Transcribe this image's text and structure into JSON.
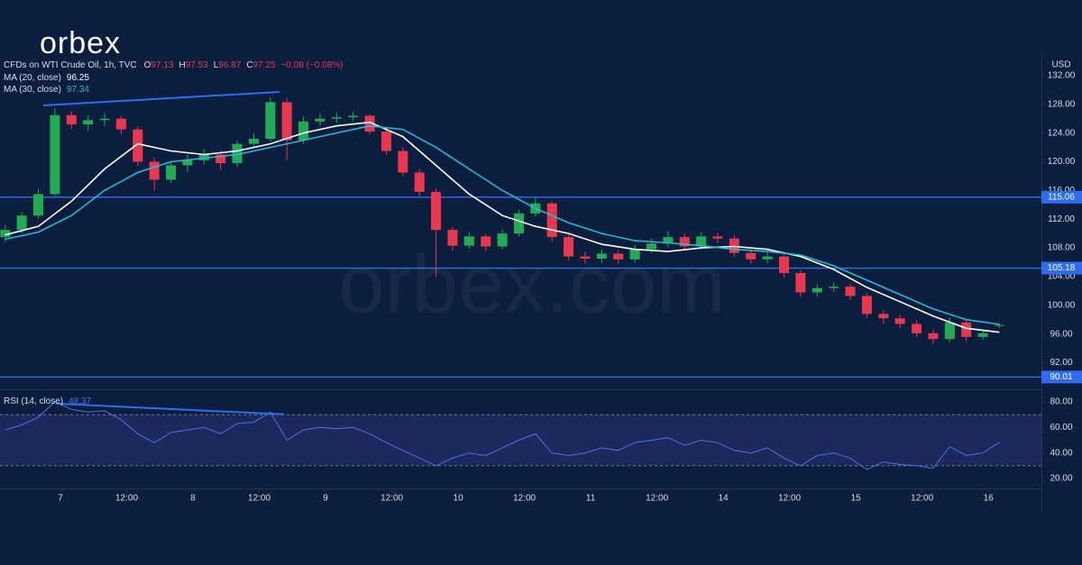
{
  "chart_data": {
    "type": "candlestick",
    "logo": "orbex",
    "watermark": "orbex.com",
    "title": "CFDs on WTI Crude Oil, 1h, TVC",
    "ohlc_keys": [
      "O",
      "H",
      "L",
      "C"
    ],
    "change_label": "−0.08 (−0.08%)",
    "currency": "USD",
    "up_color": "#22ab54",
    "down_color": "#e8384f",
    "x": [
      -10,
      -7,
      -4,
      -1,
      2,
      5,
      8,
      11,
      14,
      17,
      20,
      23,
      26,
      29,
      32,
      35,
      38,
      41,
      44,
      47,
      50,
      53,
      56,
      59,
      62,
      65,
      68,
      71,
      74,
      77,
      80,
      83,
      86,
      89,
      92,
      95,
      98,
      101,
      104,
      107,
      110,
      113,
      116,
      119,
      122,
      125,
      128,
      131,
      134,
      137,
      140,
      143,
      146,
      149,
      152,
      155,
      158,
      161,
      164,
      167,
      170
    ],
    "open": [
      109.5,
      110.5,
      112.5,
      115.5,
      126.5,
      125.2,
      125.8,
      126,
      124.5,
      120,
      117.5,
      119.5,
      120.2,
      121,
      119.8,
      122.5,
      123.2,
      128.3,
      123,
      125.6,
      126,
      126.2,
      126.4,
      124.2,
      121.5,
      118.5,
      115.8,
      110.5,
      108.3,
      109.6,
      108.2,
      110,
      112.8,
      114.2,
      109.5,
      106.8,
      106.5,
      107.2,
      106.4,
      107.8,
      108.6,
      109.5,
      108.2,
      109.6,
      109.3,
      107.3,
      106.4,
      106.8,
      104.5,
      101.8,
      102.4,
      102.6,
      101.3,
      98.8,
      98.2,
      97.4,
      96.1,
      95.3,
      97.6,
      95.6,
      97.13
    ],
    "high": [
      111.2,
      113,
      116.2,
      127.4,
      127,
      126.5,
      126.8,
      126.4,
      124.9,
      120.6,
      120.1,
      121,
      121.8,
      121.6,
      123,
      124,
      129,
      128.8,
      126.3,
      126.7,
      126.9,
      127,
      126.6,
      124.6,
      122,
      119,
      116.3,
      110.9,
      110.2,
      110,
      110.6,
      113.3,
      115.1,
      114.5,
      110,
      107.5,
      107.8,
      107.7,
      108.4,
      109.3,
      110.3,
      110,
      110.2,
      110.1,
      109.7,
      107.8,
      107.4,
      107.1,
      104.9,
      103,
      103.2,
      103,
      101.7,
      99.3,
      98.7,
      97.9,
      96.6,
      98.3,
      98,
      96.6,
      97.53
    ],
    "low": [
      108.8,
      110,
      112,
      115.2,
      124.6,
      124.3,
      125,
      123.8,
      119.4,
      116,
      117,
      118.6,
      119.6,
      118.8,
      119.3,
      121.8,
      122.8,
      120.2,
      122.5,
      125,
      125.4,
      125.6,
      123.8,
      121,
      118,
      115.2,
      104,
      107.6,
      107.9,
      107.5,
      107.8,
      109.6,
      112.4,
      108.9,
      106.2,
      105.8,
      105.9,
      105.8,
      106,
      107.3,
      108.1,
      107.6,
      107.8,
      108.7,
      106.8,
      105.8,
      105.9,
      103.9,
      101.2,
      101.2,
      101.9,
      100.7,
      98.2,
      97.5,
      96.8,
      95.6,
      94.6,
      94.8,
      95,
      95.2,
      96.87
    ],
    "close": [
      110.5,
      112.5,
      115.5,
      126.5,
      125.2,
      125.8,
      126,
      124.5,
      120,
      117.5,
      119.5,
      120.2,
      121,
      119.8,
      122.5,
      123.2,
      128.3,
      123,
      125.6,
      126,
      126.2,
      126.4,
      124.2,
      121.5,
      118.5,
      115.8,
      110.5,
      108.3,
      109.6,
      108.2,
      110,
      112.8,
      114.2,
      109.5,
      106.8,
      106.5,
      107.2,
      106.4,
      107.8,
      108.6,
      109.5,
      108.2,
      109.6,
      109.3,
      107.3,
      106.4,
      106.8,
      104.5,
      101.8,
      102.4,
      102.6,
      101.3,
      98.8,
      98.2,
      97.4,
      96.1,
      95.3,
      97.6,
      95.6,
      96.1,
      97.25
    ],
    "series": [
      {
        "name": "MA (20, close)",
        "color": "#ffffff",
        "x": [
          -10,
          -4,
          2,
          8,
          14,
          20,
          26,
          32,
          38,
          44,
          50,
          56,
          62,
          68,
          74,
          80,
          86,
          92,
          98,
          104,
          110,
          116,
          122,
          128,
          134,
          140,
          146,
          152,
          158,
          164,
          170
        ],
        "values": [
          109.8,
          111,
          114.5,
          119,
          122.5,
          121.5,
          121,
          121.5,
          122.5,
          124,
          125,
          125.5,
          123.5,
          119.5,
          115.5,
          112.5,
          111,
          110,
          108.5,
          107.8,
          107.5,
          108,
          108.2,
          107.8,
          106.8,
          105,
          102.5,
          100.5,
          98.5,
          96.8,
          96.25
        ]
      },
      {
        "name": "MA (30, close)",
        "color": "#29b6d8",
        "x": [
          -10,
          -4,
          2,
          8,
          14,
          20,
          26,
          32,
          38,
          44,
          50,
          56,
          62,
          68,
          74,
          80,
          86,
          92,
          98,
          104,
          110,
          116,
          122,
          128,
          134,
          140,
          146,
          152,
          158,
          164,
          170
        ],
        "values": [
          109.2,
          110.2,
          112.5,
          116,
          118.5,
          120,
          120.5,
          121,
          122,
          123,
          124,
          125,
          124.5,
          122,
          119,
          116,
          113.5,
          111.5,
          110,
          109,
          108.7,
          108.3,
          107.8,
          107.5,
          107,
          105.5,
          103.5,
          101.5,
          99.5,
          98,
          97.34
        ]
      }
    ],
    "levels": [
      115.06,
      105.18,
      90.01
    ],
    "level_color": "#2f6cf0",
    "trendline": {
      "x": [
        -3.1,
        39.7
      ],
      "values": [
        127.84,
        129.73
      ]
    },
    "xlim": [
      -10.94,
      177.6
    ],
    "ylim": [
      88.3,
      135.0
    ],
    "xticks": [
      {
        "value": 0,
        "label": "7"
      },
      {
        "value": 12,
        "label": "12:00"
      },
      {
        "value": 24,
        "label": "8"
      },
      {
        "value": 36,
        "label": "12:00"
      },
      {
        "value": 48,
        "label": "9"
      },
      {
        "value": 60,
        "label": "12:00"
      },
      {
        "value": 72,
        "label": "10"
      },
      {
        "value": 84,
        "label": "12:00"
      },
      {
        "value": 96,
        "label": "11"
      },
      {
        "value": 108,
        "label": "12:00"
      },
      {
        "value": 120,
        "label": "14"
      },
      {
        "value": 132,
        "label": "12:00"
      },
      {
        "value": 144,
        "label": "15"
      },
      {
        "value": 156,
        "label": "12:00"
      },
      {
        "value": 168,
        "label": "16"
      }
    ],
    "yticks": [
      {
        "value": 92,
        "label": "92.00"
      },
      {
        "value": 96,
        "label": "96.00"
      },
      {
        "value": 100,
        "label": "100.00"
      },
      {
        "value": 104,
        "label": "104.00"
      },
      {
        "value": 108,
        "label": "108.00"
      },
      {
        "value": 112,
        "label": "112.00"
      },
      {
        "value": 116,
        "label": "116.00"
      },
      {
        "value": 120,
        "label": "120.00"
      },
      {
        "value": 124,
        "label": "124.00"
      },
      {
        "value": 128,
        "label": "128.00"
      },
      {
        "value": 132,
        "label": "132.00"
      }
    ],
    "rsi": {
      "name": "RSI (14, close)",
      "color": "#4a72e8",
      "x": [
        -10,
        -7,
        -4,
        -1,
        2,
        5,
        8,
        11,
        14,
        17,
        20,
        23,
        26,
        29,
        32,
        35,
        38,
        41,
        44,
        47,
        50,
        53,
        56,
        59,
        62,
        65,
        68,
        71,
        74,
        77,
        80,
        83,
        86,
        89,
        92,
        95,
        98,
        101,
        104,
        107,
        110,
        113,
        116,
        119,
        122,
        125,
        128,
        131,
        134,
        137,
        140,
        143,
        146,
        149,
        152,
        155,
        158,
        161,
        164,
        167,
        170
      ],
      "values": [
        58,
        62,
        68,
        80,
        74,
        72,
        73,
        66,
        55,
        48,
        56,
        58,
        60,
        55,
        63,
        64,
        72,
        50,
        58,
        60,
        59,
        60,
        55,
        48,
        42,
        36,
        30,
        36,
        40,
        38,
        44,
        50,
        55,
        40,
        38,
        40,
        44,
        42,
        48,
        50,
        52,
        46,
        50,
        48,
        42,
        40,
        44,
        36,
        30,
        38,
        40,
        36,
        27,
        33,
        31,
        30,
        28,
        45,
        38,
        40,
        48.37
      ],
      "band": [
        30,
        70
      ],
      "trendline": {
        "x": [
          -0.8,
          40.5
        ],
        "values": [
          78.6,
          70.2
        ]
      },
      "ylim": [
        12.3,
        89.1
      ],
      "yticks": [
        {
          "value": 20,
          "label": "20.00"
        },
        {
          "value": 40,
          "label": "40.00"
        },
        {
          "value": 60,
          "label": "60.00"
        },
        {
          "value": 80,
          "label": "80.00"
        }
      ]
    }
  }
}
